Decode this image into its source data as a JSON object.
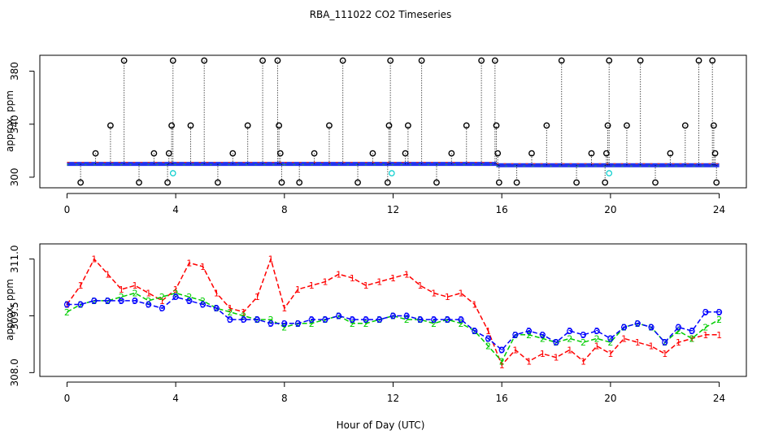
{
  "chart_data": {
    "title": "RBA_111022  CO2 Timeseries",
    "xlabel": "Hour of Day (UTC)",
    "panels": [
      {
        "name": "top",
        "type": "scatter",
        "ylabel": "approx. ppm",
        "xlim": [
          -1.0,
          25.0
        ],
        "ylim": [
          292,
          392
        ],
        "xticks": [
          0,
          4,
          8,
          12,
          16,
          20,
          24
        ],
        "yticks": [
          300,
          340,
          380
        ],
        "baseline_segments": [
          {
            "x": [
              0.0,
              8.0
            ],
            "y": 310
          },
          {
            "x": [
              8.0,
              15.8
            ],
            "y": 310
          },
          {
            "x": [
              15.8,
              24.0
            ],
            "y": 309
          }
        ],
        "outlier_points": [
          {
            "x": 0.5,
            "y": 296
          },
          {
            "x": 1.05,
            "y": 318
          },
          {
            "x": 1.6,
            "y": 339
          },
          {
            "x": 2.1,
            "y": 388
          },
          {
            "x": 2.65,
            "y": 296
          },
          {
            "x": 3.2,
            "y": 318
          },
          {
            "x": 3.7,
            "y": 296
          },
          {
            "x": 3.75,
            "y": 318
          },
          {
            "x": 3.85,
            "y": 339
          },
          {
            "x": 3.9,
            "y": 388
          },
          {
            "x": 4.55,
            "y": 339
          },
          {
            "x": 5.05,
            "y": 388
          },
          {
            "x": 5.55,
            "y": 296
          },
          {
            "x": 6.1,
            "y": 318
          },
          {
            "x": 6.65,
            "y": 339
          },
          {
            "x": 7.2,
            "y": 388
          },
          {
            "x": 7.75,
            "y": 388
          },
          {
            "x": 7.8,
            "y": 339
          },
          {
            "x": 7.85,
            "y": 318
          },
          {
            "x": 7.9,
            "y": 296
          },
          {
            "x": 8.55,
            "y": 296
          },
          {
            "x": 9.1,
            "y": 318
          },
          {
            "x": 9.65,
            "y": 339
          },
          {
            "x": 10.15,
            "y": 388
          },
          {
            "x": 10.7,
            "y": 296
          },
          {
            "x": 11.25,
            "y": 318
          },
          {
            "x": 11.8,
            "y": 296
          },
          {
            "x": 11.85,
            "y": 339
          },
          {
            "x": 11.9,
            "y": 388
          },
          {
            "x": 12.45,
            "y": 318
          },
          {
            "x": 12.55,
            "y": 339
          },
          {
            "x": 13.05,
            "y": 388
          },
          {
            "x": 13.6,
            "y": 296
          },
          {
            "x": 14.15,
            "y": 318
          },
          {
            "x": 14.7,
            "y": 339
          },
          {
            "x": 15.25,
            "y": 388
          },
          {
            "x": 15.75,
            "y": 388
          },
          {
            "x": 15.8,
            "y": 339
          },
          {
            "x": 15.85,
            "y": 318
          },
          {
            "x": 15.9,
            "y": 296
          },
          {
            "x": 16.55,
            "y": 296
          },
          {
            "x": 17.1,
            "y": 318
          },
          {
            "x": 17.65,
            "y": 339
          },
          {
            "x": 18.2,
            "y": 388
          },
          {
            "x": 18.75,
            "y": 296
          },
          {
            "x": 19.3,
            "y": 318
          },
          {
            "x": 19.8,
            "y": 296
          },
          {
            "x": 19.85,
            "y": 318
          },
          {
            "x": 19.9,
            "y": 339
          },
          {
            "x": 19.95,
            "y": 388
          },
          {
            "x": 20.6,
            "y": 339
          },
          {
            "x": 21.1,
            "y": 388
          },
          {
            "x": 21.65,
            "y": 296
          },
          {
            "x": 22.2,
            "y": 318
          },
          {
            "x": 22.75,
            "y": 339
          },
          {
            "x": 23.25,
            "y": 388
          },
          {
            "x": 23.75,
            "y": 388
          },
          {
            "x": 23.8,
            "y": 339
          },
          {
            "x": 23.85,
            "y": 318
          },
          {
            "x": 23.9,
            "y": 296
          }
        ],
        "cyan_points": [
          {
            "x": 3.9,
            "y": 303
          },
          {
            "x": 11.95,
            "y": 303
          },
          {
            "x": 19.95,
            "y": 303
          }
        ]
      },
      {
        "name": "bottom",
        "type": "line",
        "ylabel": "approx. ppm",
        "xlim": [
          -1.0,
          25.0
        ],
        "ylim": [
          307.9,
          311.4
        ],
        "xticks": [
          0,
          4,
          8,
          12,
          16,
          20,
          24
        ],
        "yticks": [
          308.0,
          309.5,
          311.0
        ],
        "series": [
          {
            "name": "1",
            "color": "#ff0000",
            "x": [
              0.0,
              0.5,
              1.0,
              1.5,
              2.0,
              2.5,
              3.0,
              3.5,
              4.0,
              4.5,
              5.0,
              5.5,
              6.0,
              6.5,
              7.0,
              7.5,
              8.0,
              8.5,
              9.0,
              9.5,
              10.0,
              10.5,
              11.0,
              11.5,
              12.0,
              12.5,
              13.0,
              13.5,
              14.0,
              14.5,
              15.0,
              15.5,
              16.0,
              16.5,
              17.0,
              17.5,
              18.0,
              18.5,
              19.0,
              19.5,
              20.0,
              20.5,
              21.0,
              21.5,
              22.0,
              22.5,
              23.0,
              23.5,
              24.0
            ],
            "values": [
              309.8,
              310.3,
              311.0,
              310.6,
              310.2,
              310.3,
              310.1,
              309.9,
              310.2,
              310.9,
              310.8,
              310.1,
              309.7,
              309.6,
              310.0,
              311.0,
              309.7,
              310.2,
              310.3,
              310.4,
              310.6,
              310.5,
              310.3,
              310.4,
              310.5,
              310.6,
              310.3,
              310.1,
              310.0,
              310.1,
              309.8,
              309.1,
              308.2,
              308.6,
              308.3,
              308.5,
              308.4,
              308.6,
              308.3,
              308.7,
              308.5,
              308.9,
              308.8,
              308.7,
              308.5,
              308.8,
              308.9,
              309.0,
              309.0
            ]
          },
          {
            "name": "2",
            "color": "#00cc00",
            "x": [
              0.0,
              0.5,
              1.0,
              1.5,
              2.0,
              2.5,
              3.0,
              3.5,
              4.0,
              4.5,
              5.0,
              5.5,
              6.0,
              6.5,
              7.0,
              7.5,
              8.0,
              8.5,
              9.0,
              9.5,
              10.0,
              10.5,
              11.0,
              11.5,
              12.0,
              12.5,
              13.0,
              13.5,
              14.0,
              14.5,
              15.0,
              15.5,
              16.0,
              16.5,
              17.0,
              17.5,
              18.0,
              18.5,
              19.0,
              19.5,
              20.0,
              20.5,
              21.0,
              21.5,
              22.0,
              22.5,
              23.0,
              23.5,
              24.0
            ],
            "values": [
              309.6,
              309.8,
              309.9,
              309.9,
              310.0,
              310.1,
              309.9,
              310.0,
              310.1,
              310.0,
              309.9,
              309.7,
              309.6,
              309.5,
              309.4,
              309.4,
              309.2,
              309.3,
              309.3,
              309.4,
              309.5,
              309.3,
              309.3,
              309.4,
              309.5,
              309.4,
              309.4,
              309.3,
              309.4,
              309.3,
              309.1,
              308.7,
              308.3,
              309.0,
              309.0,
              308.9,
              308.8,
              308.9,
              308.8,
              308.9,
              308.8,
              309.2,
              309.3,
              309.2,
              308.8,
              309.1,
              308.9,
              309.2,
              309.4
            ]
          },
          {
            "name": "3",
            "color": "#0000ff",
            "x": [
              0.0,
              0.5,
              1.0,
              1.5,
              2.0,
              2.5,
              3.0,
              3.5,
              4.0,
              4.5,
              5.0,
              5.5,
              6.0,
              6.5,
              7.0,
              7.5,
              8.0,
              8.5,
              9.0,
              9.5,
              10.0,
              10.5,
              11.0,
              11.5,
              12.0,
              12.5,
              13.0,
              13.5,
              14.0,
              14.5,
              15.0,
              15.5,
              16.0,
              16.5,
              17.0,
              17.5,
              18.0,
              18.5,
              19.0,
              19.5,
              20.0,
              20.5,
              21.0,
              21.5,
              22.0,
              22.5,
              23.0,
              23.5,
              24.0
            ],
            "values": [
              309.8,
              309.8,
              309.9,
              309.9,
              309.9,
              309.9,
              309.8,
              309.7,
              310.0,
              309.9,
              309.8,
              309.7,
              309.4,
              309.4,
              309.4,
              309.3,
              309.3,
              309.3,
              309.4,
              309.4,
              309.5,
              309.4,
              309.4,
              309.4,
              309.5,
              309.5,
              309.4,
              309.4,
              309.4,
              309.4,
              309.1,
              308.9,
              308.6,
              309.0,
              309.1,
              309.0,
              308.8,
              309.1,
              309.0,
              309.1,
              308.9,
              309.2,
              309.3,
              309.2,
              308.8,
              309.2,
              309.1,
              309.6,
              309.6
            ]
          }
        ]
      }
    ]
  }
}
